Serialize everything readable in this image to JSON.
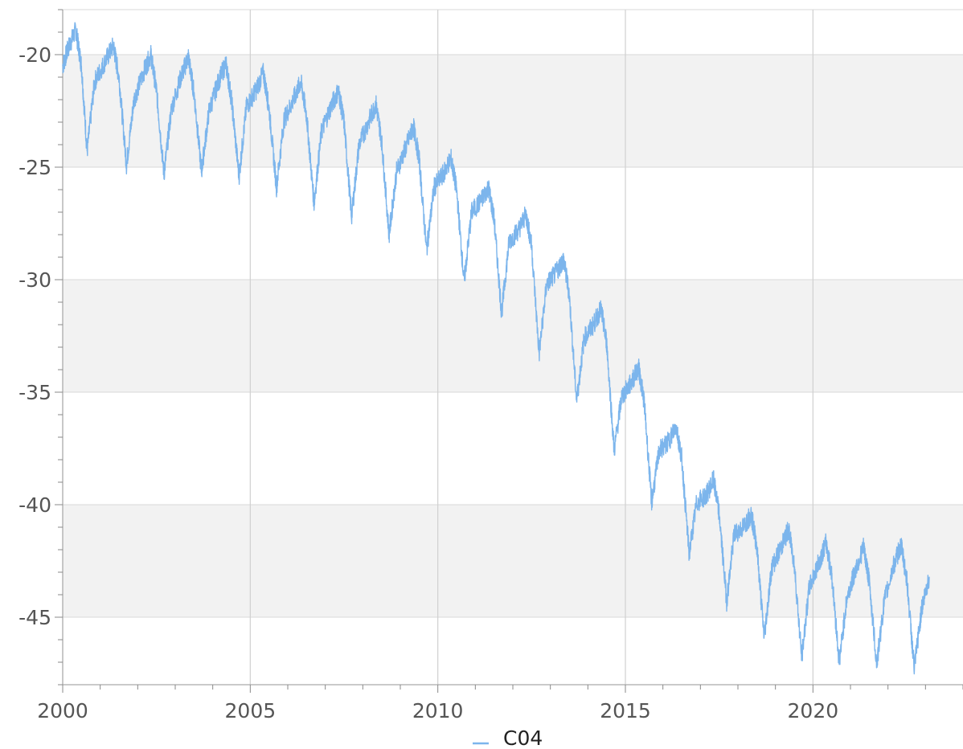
{
  "chart_data": {
    "type": "line",
    "title": "",
    "xlabel": "",
    "ylabel": "",
    "xlim": [
      2000,
      2024
    ],
    "ylim": [
      -48,
      -18
    ],
    "x_ticks": [
      2000,
      2005,
      2010,
      2015,
      2020
    ],
    "x_tick_labels": [
      "2000",
      "2005",
      "2010",
      "2015",
      "2020"
    ],
    "y_ticks": [
      -20,
      -25,
      -30,
      -35,
      -40,
      -45
    ],
    "y_tick_labels": [
      "-20",
      "-25",
      "-30",
      "-35",
      "-40",
      "-45"
    ],
    "grid": true,
    "alternating_bands": true,
    "legend_position": "bottom-center",
    "series": [
      {
        "name": "C04",
        "color": "#7cb5ec",
        "points": [
          [
            2000.0,
            -20.5
          ],
          [
            2000.15,
            -19.7
          ],
          [
            2000.35,
            -18.9
          ],
          [
            2000.5,
            -20.5
          ],
          [
            2000.65,
            -24.3
          ],
          [
            2000.85,
            -21.2
          ],
          [
            2001.1,
            -20.4
          ],
          [
            2001.35,
            -19.6
          ],
          [
            2001.5,
            -21.0
          ],
          [
            2001.7,
            -24.9
          ],
          [
            2001.9,
            -22.0
          ],
          [
            2002.15,
            -20.8
          ],
          [
            2002.35,
            -20.0
          ],
          [
            2002.5,
            -21.6
          ],
          [
            2002.7,
            -25.3
          ],
          [
            2002.9,
            -22.4
          ],
          [
            2003.15,
            -21.0
          ],
          [
            2003.35,
            -20.1
          ],
          [
            2003.5,
            -21.7
          ],
          [
            2003.7,
            -25.2
          ],
          [
            2003.9,
            -22.5
          ],
          [
            2004.15,
            -21.2
          ],
          [
            2004.35,
            -20.4
          ],
          [
            2004.5,
            -22.0
          ],
          [
            2004.7,
            -25.4
          ],
          [
            2004.9,
            -22.3
          ],
          [
            2005.15,
            -21.6
          ],
          [
            2005.35,
            -20.8
          ],
          [
            2005.5,
            -22.4
          ],
          [
            2005.7,
            -25.9
          ],
          [
            2005.9,
            -22.9
          ],
          [
            2006.15,
            -22.0
          ],
          [
            2006.35,
            -21.2
          ],
          [
            2006.5,
            -22.7
          ],
          [
            2006.7,
            -26.6
          ],
          [
            2006.9,
            -23.4
          ],
          [
            2007.15,
            -22.3
          ],
          [
            2007.35,
            -21.6
          ],
          [
            2007.5,
            -23.0
          ],
          [
            2007.7,
            -27.2
          ],
          [
            2007.9,
            -24.0
          ],
          [
            2008.15,
            -23.0
          ],
          [
            2008.35,
            -22.2
          ],
          [
            2008.5,
            -23.8
          ],
          [
            2008.7,
            -28.0
          ],
          [
            2008.9,
            -25.2
          ],
          [
            2009.15,
            -24.1
          ],
          [
            2009.35,
            -23.2
          ],
          [
            2009.5,
            -24.6
          ],
          [
            2009.7,
            -28.7
          ],
          [
            2009.9,
            -25.9
          ],
          [
            2010.15,
            -25.3
          ],
          [
            2010.35,
            -24.6
          ],
          [
            2010.5,
            -26.0
          ],
          [
            2010.7,
            -30.1
          ],
          [
            2010.9,
            -27.0
          ],
          [
            2011.15,
            -26.5
          ],
          [
            2011.35,
            -25.9
          ],
          [
            2011.5,
            -27.3
          ],
          [
            2011.7,
            -31.5
          ],
          [
            2011.9,
            -28.3
          ],
          [
            2012.15,
            -27.8
          ],
          [
            2012.35,
            -27.1
          ],
          [
            2012.5,
            -28.5
          ],
          [
            2012.7,
            -33.3
          ],
          [
            2012.9,
            -30.2
          ],
          [
            2013.15,
            -29.7
          ],
          [
            2013.35,
            -29.1
          ],
          [
            2013.5,
            -30.6
          ],
          [
            2013.7,
            -35.4
          ],
          [
            2013.9,
            -32.6
          ],
          [
            2014.15,
            -32.0
          ],
          [
            2014.35,
            -31.3
          ],
          [
            2014.5,
            -32.8
          ],
          [
            2014.7,
            -37.6
          ],
          [
            2014.9,
            -35.2
          ],
          [
            2015.15,
            -34.6
          ],
          [
            2015.35,
            -33.9
          ],
          [
            2015.5,
            -35.4
          ],
          [
            2015.7,
            -39.9
          ],
          [
            2015.9,
            -37.6
          ],
          [
            2016.15,
            -37.2
          ],
          [
            2016.35,
            -36.5
          ],
          [
            2016.5,
            -37.9
          ],
          [
            2016.7,
            -42.2
          ],
          [
            2016.9,
            -39.9
          ],
          [
            2017.15,
            -39.6
          ],
          [
            2017.35,
            -38.9
          ],
          [
            2017.5,
            -40.4
          ],
          [
            2017.7,
            -44.3
          ],
          [
            2017.9,
            -41.3
          ],
          [
            2018.15,
            -41.0
          ],
          [
            2018.35,
            -40.4
          ],
          [
            2018.5,
            -41.8
          ],
          [
            2018.7,
            -45.9
          ],
          [
            2018.9,
            -42.8
          ],
          [
            2019.15,
            -41.9
          ],
          [
            2019.35,
            -41.1
          ],
          [
            2019.5,
            -42.6
          ],
          [
            2019.7,
            -46.8
          ],
          [
            2019.9,
            -43.7
          ],
          [
            2020.15,
            -42.6
          ],
          [
            2020.35,
            -41.7
          ],
          [
            2020.5,
            -43.1
          ],
          [
            2020.7,
            -47.0
          ],
          [
            2020.9,
            -44.2
          ],
          [
            2021.15,
            -42.8
          ],
          [
            2021.35,
            -41.9
          ],
          [
            2021.5,
            -43.4
          ],
          [
            2021.7,
            -47.1
          ],
          [
            2021.9,
            -44.3
          ],
          [
            2022.15,
            -42.7
          ],
          [
            2022.35,
            -41.8
          ],
          [
            2022.5,
            -43.3
          ],
          [
            2022.7,
            -47.3
          ],
          [
            2022.9,
            -44.6
          ],
          [
            2023.1,
            -43.2
          ]
        ]
      }
    ]
  }
}
